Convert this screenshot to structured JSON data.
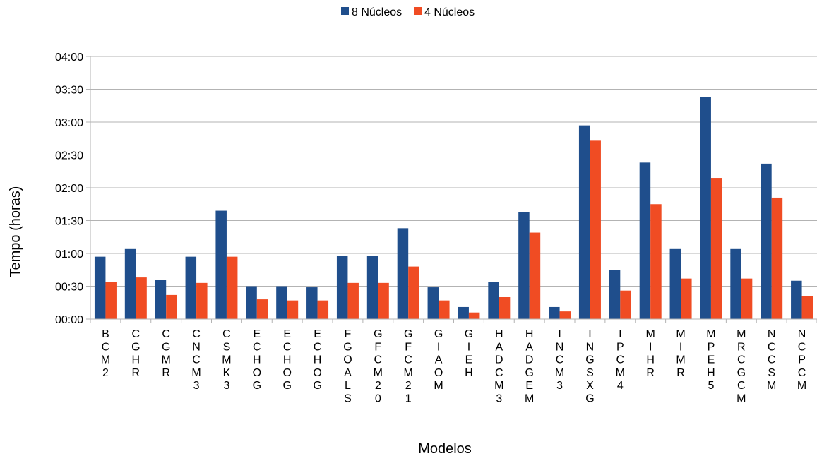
{
  "chart_data": {
    "type": "bar",
    "xlabel": "Modelos",
    "ylabel": "Tempo (horas)",
    "y_unit": "minutes",
    "ylim": [
      0,
      240
    ],
    "y_ticks": [
      0,
      30,
      60,
      90,
      120,
      150,
      180,
      210,
      240
    ],
    "y_tick_labels": [
      "00:00",
      "00:30",
      "01:00",
      "01:30",
      "02:00",
      "02:30",
      "03:00",
      "03:30",
      "04:00"
    ],
    "grid": true,
    "legend_position": "top-center",
    "categories": [
      "BCM2",
      "CGHR",
      "CGMR",
      "CNCM3",
      "CSMK3",
      "ECHOG",
      "ECHOG",
      "ECHOG",
      "FGOALS",
      "GFCM20",
      "GFCM21",
      "GIAOM",
      "GIEH",
      "HADCM3",
      "HADGEM",
      "INCM3",
      "INGSXG",
      "IPCM4",
      "MIHR",
      "MIMR",
      "MPEH5",
      "MRCGCM",
      "NCCSM",
      "NCPCM"
    ],
    "series": [
      {
        "name": "8 Núcleos",
        "color": "#1f4e8c",
        "values": [
          57,
          64,
          36,
          57,
          99,
          30,
          30,
          29,
          58,
          58,
          83,
          29,
          11,
          34,
          98,
          11,
          177,
          45,
          143,
          64,
          203,
          64,
          142,
          35
        ]
      },
      {
        "name": "4 Núcleos",
        "color": "#f04c23",
        "values": [
          34,
          38,
          22,
          33,
          57,
          18,
          17,
          17,
          33,
          33,
          48,
          17,
          6,
          20,
          79,
          7,
          163,
          26,
          105,
          37,
          129,
          37,
          111,
          21
        ]
      }
    ]
  }
}
